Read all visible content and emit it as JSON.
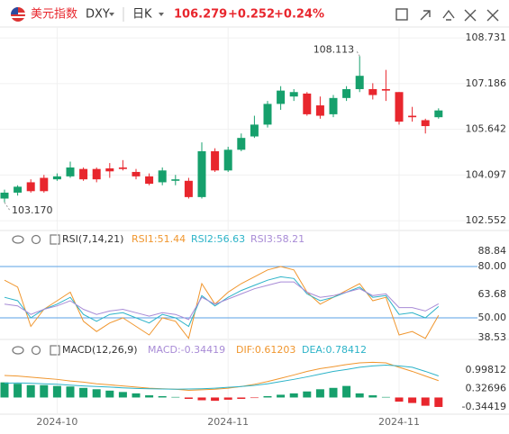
{
  "header": {
    "name": "美元指数",
    "symbol": "DXY",
    "period": "日K",
    "price": "106.279",
    "change": "+0.252",
    "change_pct": "+0.24%"
  },
  "chart_data": [
    {
      "type": "candlestick",
      "categories": [
        null,
        null,
        null,
        null,
        "2024-10",
        null,
        null,
        null,
        null,
        null,
        null,
        null,
        null,
        null,
        null,
        null,
        null,
        "2024-11",
        null,
        null,
        null,
        null,
        null,
        null,
        null,
        null,
        null,
        null,
        null,
        null,
        "2024-11",
        null,
        null,
        null
      ],
      "open": [
        103.3,
        103.5,
        103.85,
        104.0,
        103.95,
        104.05,
        104.3,
        104.3,
        104.32,
        104.35,
        104.2,
        104.05,
        103.85,
        103.9,
        103.9,
        103.35,
        104.9,
        104.25,
        104.95,
        105.4,
        105.8,
        106.5,
        106.75,
        106.85,
        106.45,
        106.15,
        106.7,
        107.0,
        107.0,
        107.0,
        106.9,
        106.1,
        105.95,
        106.05
      ],
      "high": [
        103.6,
        103.75,
        103.95,
        104.1,
        104.15,
        104.55,
        104.35,
        104.35,
        104.5,
        104.6,
        104.3,
        104.15,
        104.35,
        104.1,
        104.0,
        105.2,
        105.0,
        105.05,
        105.5,
        106.1,
        106.6,
        107.1,
        107.0,
        106.9,
        106.75,
        106.8,
        107.1,
        108.113,
        107.2,
        107.65,
        106.9,
        106.4,
        106.0,
        106.35
      ],
      "low": [
        103.17,
        103.4,
        103.5,
        103.5,
        103.9,
        104.0,
        103.9,
        103.85,
        104.0,
        104.25,
        103.95,
        103.75,
        103.75,
        103.75,
        103.3,
        103.3,
        104.2,
        104.2,
        104.9,
        105.35,
        105.7,
        106.3,
        106.6,
        106.1,
        106.0,
        106.05,
        106.6,
        106.9,
        106.65,
        106.6,
        105.8,
        105.9,
        105.5,
        106.0
      ],
      "close": [
        103.5,
        103.7,
        103.55,
        103.55,
        104.05,
        104.35,
        103.95,
        103.95,
        104.22,
        104.3,
        104.05,
        103.8,
        104.25,
        103.95,
        103.35,
        104.9,
        104.25,
        104.95,
        105.35,
        105.8,
        106.5,
        106.95,
        106.9,
        106.15,
        106.1,
        106.7,
        107.0,
        107.45,
        106.8,
        106.95,
        105.9,
        106.05,
        105.75,
        106.279
      ],
      "up_color": "#16a06c",
      "down_color": "#e8262d",
      "ylim": [
        102.25,
        109.1
      ],
      "yticks": [
        102.552,
        104.097,
        105.642,
        107.186,
        108.731
      ],
      "grid": true,
      "annotations": [
        {
          "index": 27,
          "value": 108.113
        },
        {
          "index": 0,
          "value": 103.17,
          "label": "103.170"
        }
      ]
    },
    {
      "type": "line",
      "title": "RSI(7,14,21)",
      "series": [
        {
          "name": "RSI1:51.44",
          "color": "#f0962e",
          "values": [
            72,
            68,
            45,
            55,
            60,
            65,
            48,
            42,
            47,
            50,
            45,
            40,
            50,
            48,
            38,
            70,
            58,
            65,
            70,
            74,
            78,
            80,
            78,
            65,
            58,
            62,
            66,
            70,
            60,
            62,
            40,
            42,
            38,
            51.44
          ]
        },
        {
          "name": "RSI2:56.63",
          "color": "#2cb3c8",
          "values": [
            62,
            60,
            50,
            55,
            58,
            62,
            52,
            48,
            52,
            53,
            50,
            47,
            52,
            50,
            45,
            63,
            57,
            62,
            66,
            69,
            72,
            74,
            73,
            64,
            60,
            62,
            65,
            68,
            62,
            63,
            52,
            53,
            50,
            56.63
          ]
        },
        {
          "name": "RSI3:58.21",
          "color": "#a88bd6",
          "values": [
            58,
            57,
            52,
            55,
            57,
            60,
            55,
            52,
            54,
            55,
            53,
            51,
            53,
            52,
            49,
            62,
            58,
            61,
            64,
            67,
            69,
            71,
            71,
            65,
            62,
            63,
            65,
            67,
            63,
            64,
            56,
            56,
            54,
            58.21
          ]
        }
      ],
      "ylim": [
        37,
        91
      ],
      "yticks": [
        38.53,
        {
          "value": 50,
          "label": "50.00"
        },
        63.68,
        {
          "value": 80,
          "label": "80.00"
        },
        88.84
      ],
      "hlines": [
        80,
        50
      ],
      "hline_color": "#5aa0e6"
    },
    {
      "type": "macd",
      "title": "MACD(12,26,9)",
      "series": [
        {
          "name": "MACD:-0.34419",
          "color": "#a88bd6",
          "up_color": "#16a06c",
          "down_color": "#e8262d",
          "values": [
            0.55,
            0.5,
            0.45,
            0.45,
            0.42,
            0.4,
            0.35,
            0.3,
            0.25,
            0.2,
            0.15,
            0.08,
            0.05,
            0.02,
            -0.05,
            -0.1,
            -0.12,
            -0.08,
            -0.05,
            -0.02,
            0.05,
            0.1,
            0.15,
            0.22,
            0.3,
            0.35,
            0.42,
            0.15,
            0.08,
            0.02,
            -0.15,
            -0.2,
            -0.3,
            -0.34419
          ]
        },
        {
          "name": "DIF:0.61203",
          "color": "#f0962e",
          "values": [
            0.8,
            0.78,
            0.74,
            0.7,
            0.66,
            0.6,
            0.56,
            0.5,
            0.46,
            0.42,
            0.38,
            0.34,
            0.32,
            0.3,
            0.26,
            0.28,
            0.3,
            0.34,
            0.4,
            0.48,
            0.58,
            0.7,
            0.82,
            0.95,
            1.05,
            1.12,
            1.2,
            1.26,
            1.28,
            1.26,
            1.1,
            0.95,
            0.78,
            0.61203
          ]
        },
        {
          "name": "DEA:0.78412",
          "color": "#2cb3c8",
          "values": [
            0.52,
            0.53,
            0.52,
            0.5,
            0.48,
            0.45,
            0.42,
            0.4,
            0.38,
            0.35,
            0.33,
            0.32,
            0.31,
            0.3,
            0.31,
            0.32,
            0.34,
            0.37,
            0.4,
            0.44,
            0.5,
            0.58,
            0.66,
            0.75,
            0.85,
            0.95,
            1.02,
            1.1,
            1.15,
            1.18,
            1.15,
            1.1,
            0.95,
            0.78412
          ]
        }
      ],
      "ylim": [
        -0.65,
        1.45
      ],
      "yticks": [
        -0.34419,
        0.32696,
        0.99812
      ]
    }
  ]
}
